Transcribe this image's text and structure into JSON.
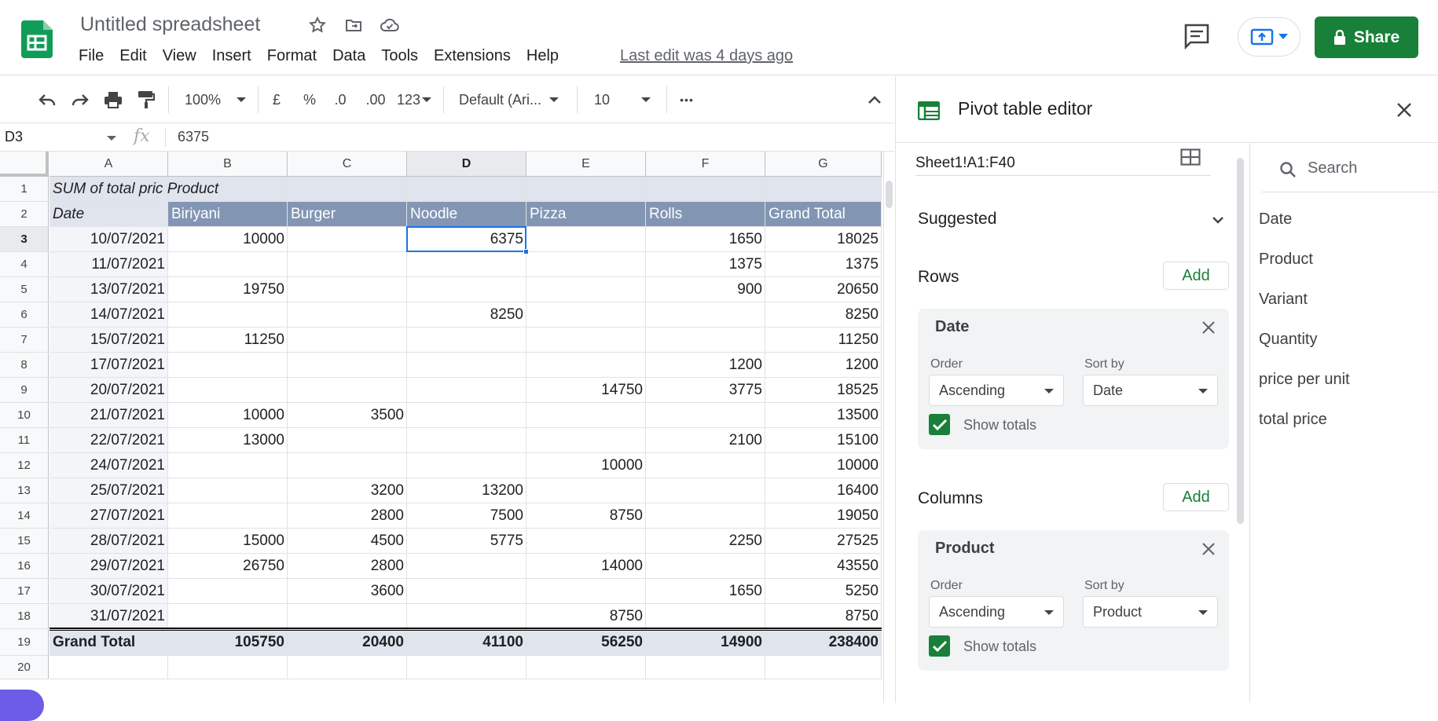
{
  "app": {
    "title": "Untitled spreadsheet",
    "last_edit": "Last edit was 4 days ago",
    "share_label": "Share"
  },
  "menu": [
    "File",
    "Edit",
    "View",
    "Insert",
    "Format",
    "Data",
    "Tools",
    "Extensions",
    "Help"
  ],
  "toolbar": {
    "zoom": "100%",
    "currency": "£",
    "percent": "%",
    "dec_decrease": ".0",
    "dec_increase": ".00",
    "format_more": "123",
    "font": "Default (Ari...",
    "font_size": "10",
    "more": "•••"
  },
  "formula_bar": {
    "name_box": "D3",
    "fx": "fx",
    "value": "6375"
  },
  "sheet": {
    "columns": [
      "A",
      "B",
      "C",
      "D",
      "E",
      "F",
      "G"
    ],
    "row_numbers": [
      "1",
      "2",
      "3",
      "4",
      "5",
      "6",
      "7",
      "8",
      "9",
      "10",
      "11",
      "12",
      "13",
      "14",
      "15",
      "16",
      "17",
      "18",
      "19",
      "20"
    ],
    "pivot_title": "SUM of total pric Product",
    "headers": [
      "Date",
      "Biriyani",
      "Burger",
      "Noodle",
      "Pizza",
      "Rolls",
      "Grand Total"
    ],
    "rows": [
      [
        "10/07/2021",
        "10000",
        "",
        "6375",
        "",
        "1650",
        "18025"
      ],
      [
        "11/07/2021",
        "",
        "",
        "",
        "",
        "1375",
        "1375"
      ],
      [
        "13/07/2021",
        "19750",
        "",
        "",
        "",
        "900",
        "20650"
      ],
      [
        "14/07/2021",
        "",
        "",
        "8250",
        "",
        "",
        "8250"
      ],
      [
        "15/07/2021",
        "11250",
        "",
        "",
        "",
        "",
        "11250"
      ],
      [
        "17/07/2021",
        "",
        "",
        "",
        "",
        "1200",
        "1200"
      ],
      [
        "20/07/2021",
        "",
        "",
        "",
        "14750",
        "3775",
        "18525"
      ],
      [
        "21/07/2021",
        "10000",
        "3500",
        "",
        "",
        "",
        "13500"
      ],
      [
        "22/07/2021",
        "13000",
        "",
        "",
        "",
        "2100",
        "15100"
      ],
      [
        "24/07/2021",
        "",
        "",
        "",
        "10000",
        "",
        "10000"
      ],
      [
        "25/07/2021",
        "",
        "3200",
        "13200",
        "",
        "",
        "16400"
      ],
      [
        "27/07/2021",
        "",
        "2800",
        "7500",
        "8750",
        "",
        "19050"
      ],
      [
        "28/07/2021",
        "15000",
        "4500",
        "5775",
        "",
        "2250",
        "27525"
      ],
      [
        "29/07/2021",
        "26750",
        "2800",
        "",
        "14000",
        "",
        "43550"
      ],
      [
        "30/07/2021",
        "",
        "3600",
        "",
        "",
        "1650",
        "5250"
      ],
      [
        "31/07/2021",
        "",
        "",
        "",
        "8750",
        "",
        "8750"
      ]
    ],
    "grand_total": [
      "Grand Total",
      "105750",
      "20400",
      "41100",
      "56250",
      "14900",
      "238400"
    ]
  },
  "panel": {
    "title": "Pivot table editor",
    "range": "Sheet1!A1:F40",
    "suggested": "Suggested",
    "rows_label": "Rows",
    "columns_label": "Columns",
    "add_label": "Add",
    "order_label": "Order",
    "sort_by_label": "Sort by",
    "show_totals": "Show totals",
    "row_card": {
      "title": "Date",
      "order": "Ascending",
      "sort_by": "Date"
    },
    "col_card": {
      "title": "Product",
      "order": "Ascending",
      "sort_by": "Product"
    },
    "search_placeholder": "Search",
    "fields": [
      "Date",
      "Product",
      "Variant",
      "Quantity",
      "price per unit",
      "total price"
    ]
  },
  "colors": {
    "brand_green": "#188038",
    "header_band": "#8296b4",
    "title_band": "#e0e4ec",
    "selection": "#1a73e8"
  }
}
